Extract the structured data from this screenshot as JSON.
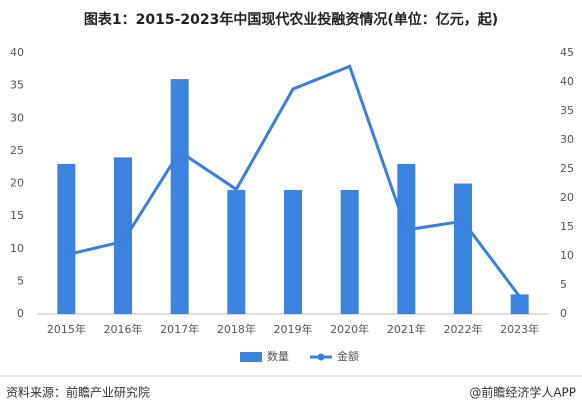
{
  "chart_data": {
    "type": "combo",
    "title": "图表1：2015-2023年中国现代农业投融资情况(单位：亿元，起)",
    "categories": [
      "2015年",
      "2016年",
      "2017年",
      "2018年",
      "2019年",
      "2020年",
      "2021年",
      "2022年",
      "2023年"
    ],
    "series": [
      {
        "name": "数量",
        "type": "bar",
        "color": "#3a84e0",
        "values": [
          23,
          24,
          36,
          19,
          19,
          19,
          23,
          20,
          3
        ]
      },
      {
        "name": "金额",
        "type": "line",
        "axis": "y2",
        "color": "#3a7fdc",
        "values": [
          10.2,
          12.5,
          28,
          21.5,
          38.8,
          42.7,
          14.5,
          16,
          3
        ]
      }
    ],
    "ylim": [
      0,
      40
    ],
    "yticks": [
      0,
      5,
      10,
      15,
      20,
      25,
      30,
      35,
      40
    ],
    "y2lim": [
      0,
      45
    ],
    "y2ticks": [
      0,
      5,
      10,
      15,
      20,
      25,
      30,
      35,
      40,
      45
    ],
    "legend": "bottom"
  },
  "source": "资料来源：前瞻产业研究院",
  "credit": "@前瞻经济学人APP"
}
